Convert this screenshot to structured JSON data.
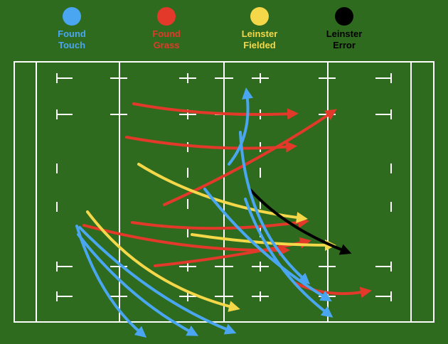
{
  "legend": [
    {
      "key": "touch",
      "line1": "Found",
      "line2": "Touch",
      "color": "#4aa6f0",
      "text_color": "#4aa6f0"
    },
    {
      "key": "grass",
      "line1": "Found",
      "line2": "Grass",
      "color": "#e2392a",
      "text_color": "#e2392a"
    },
    {
      "key": "fielded",
      "line1": "Leinster",
      "line2": "Fielded",
      "color": "#f5d84a",
      "text_color": "#f5d84a"
    },
    {
      "key": "error",
      "line1": "Leinster",
      "line2": "Error",
      "color": "#000000",
      "text_color": "#000000"
    }
  ],
  "colors": {
    "field": "#2f6b1f",
    "lines": "#ffffff"
  }
}
